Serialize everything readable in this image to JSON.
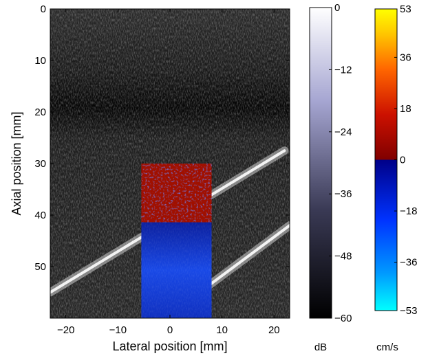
{
  "chart_data": [
    {
      "type": "heatmap",
      "description_kind": "B-mode ultrasound image with color Doppler overlay",
      "xlabel": "Lateral position [mm]",
      "ylabel": "Axial position [mm]",
      "xlim": [
        -23,
        23
      ],
      "ylim": [
        0,
        60
      ],
      "y_axis_direction": "down",
      "x_ticks": [
        -20,
        -10,
        0,
        10,
        20
      ],
      "x_tick_labels": [
        "−20",
        "−10",
        "0",
        "10",
        "20"
      ],
      "y_ticks": [
        0,
        10,
        20,
        30,
        40,
        50
      ],
      "y_tick_labels": [
        "0",
        "10",
        "20",
        "30",
        "40",
        "50"
      ],
      "doppler_box": {
        "x": [
          -5.5,
          8
        ],
        "y": [
          30,
          60
        ]
      },
      "vessel_walls": [
        {
          "x": [
            -23,
            22
          ],
          "y": [
            55,
            27.5
          ]
        },
        {
          "x": [
            7,
            23
          ],
          "y": [
            54,
            42
          ]
        }
      ],
      "grid": false
    },
    {
      "type": "colorbar",
      "unit": "dB",
      "range": [
        -60,
        0
      ],
      "ticks": [
        0,
        -12,
        -24,
        -36,
        -48,
        -60
      ],
      "tick_labels": [
        "0",
        "−12",
        "−24",
        "−36",
        "−48",
        "−60"
      ],
      "colormap": [
        "#000000",
        "#55557a",
        "#a6a6d2",
        "#ffffff"
      ]
    },
    {
      "type": "colorbar",
      "unit": "cm/s",
      "range": [
        -53,
        53
      ],
      "ticks": [
        53,
        36,
        18,
        0,
        -18,
        -36,
        -53
      ],
      "tick_labels": [
        "53",
        "36",
        "18",
        "0",
        "−18",
        "−36",
        "−53"
      ],
      "colormap_top": [
        "#800000",
        "#cc1100",
        "#ff6600",
        "#ffcc00",
        "#ffff00"
      ],
      "colormap_bottom": [
        "#00ffff",
        "#0099ff",
        "#0033ff",
        "#000088"
      ]
    }
  ]
}
